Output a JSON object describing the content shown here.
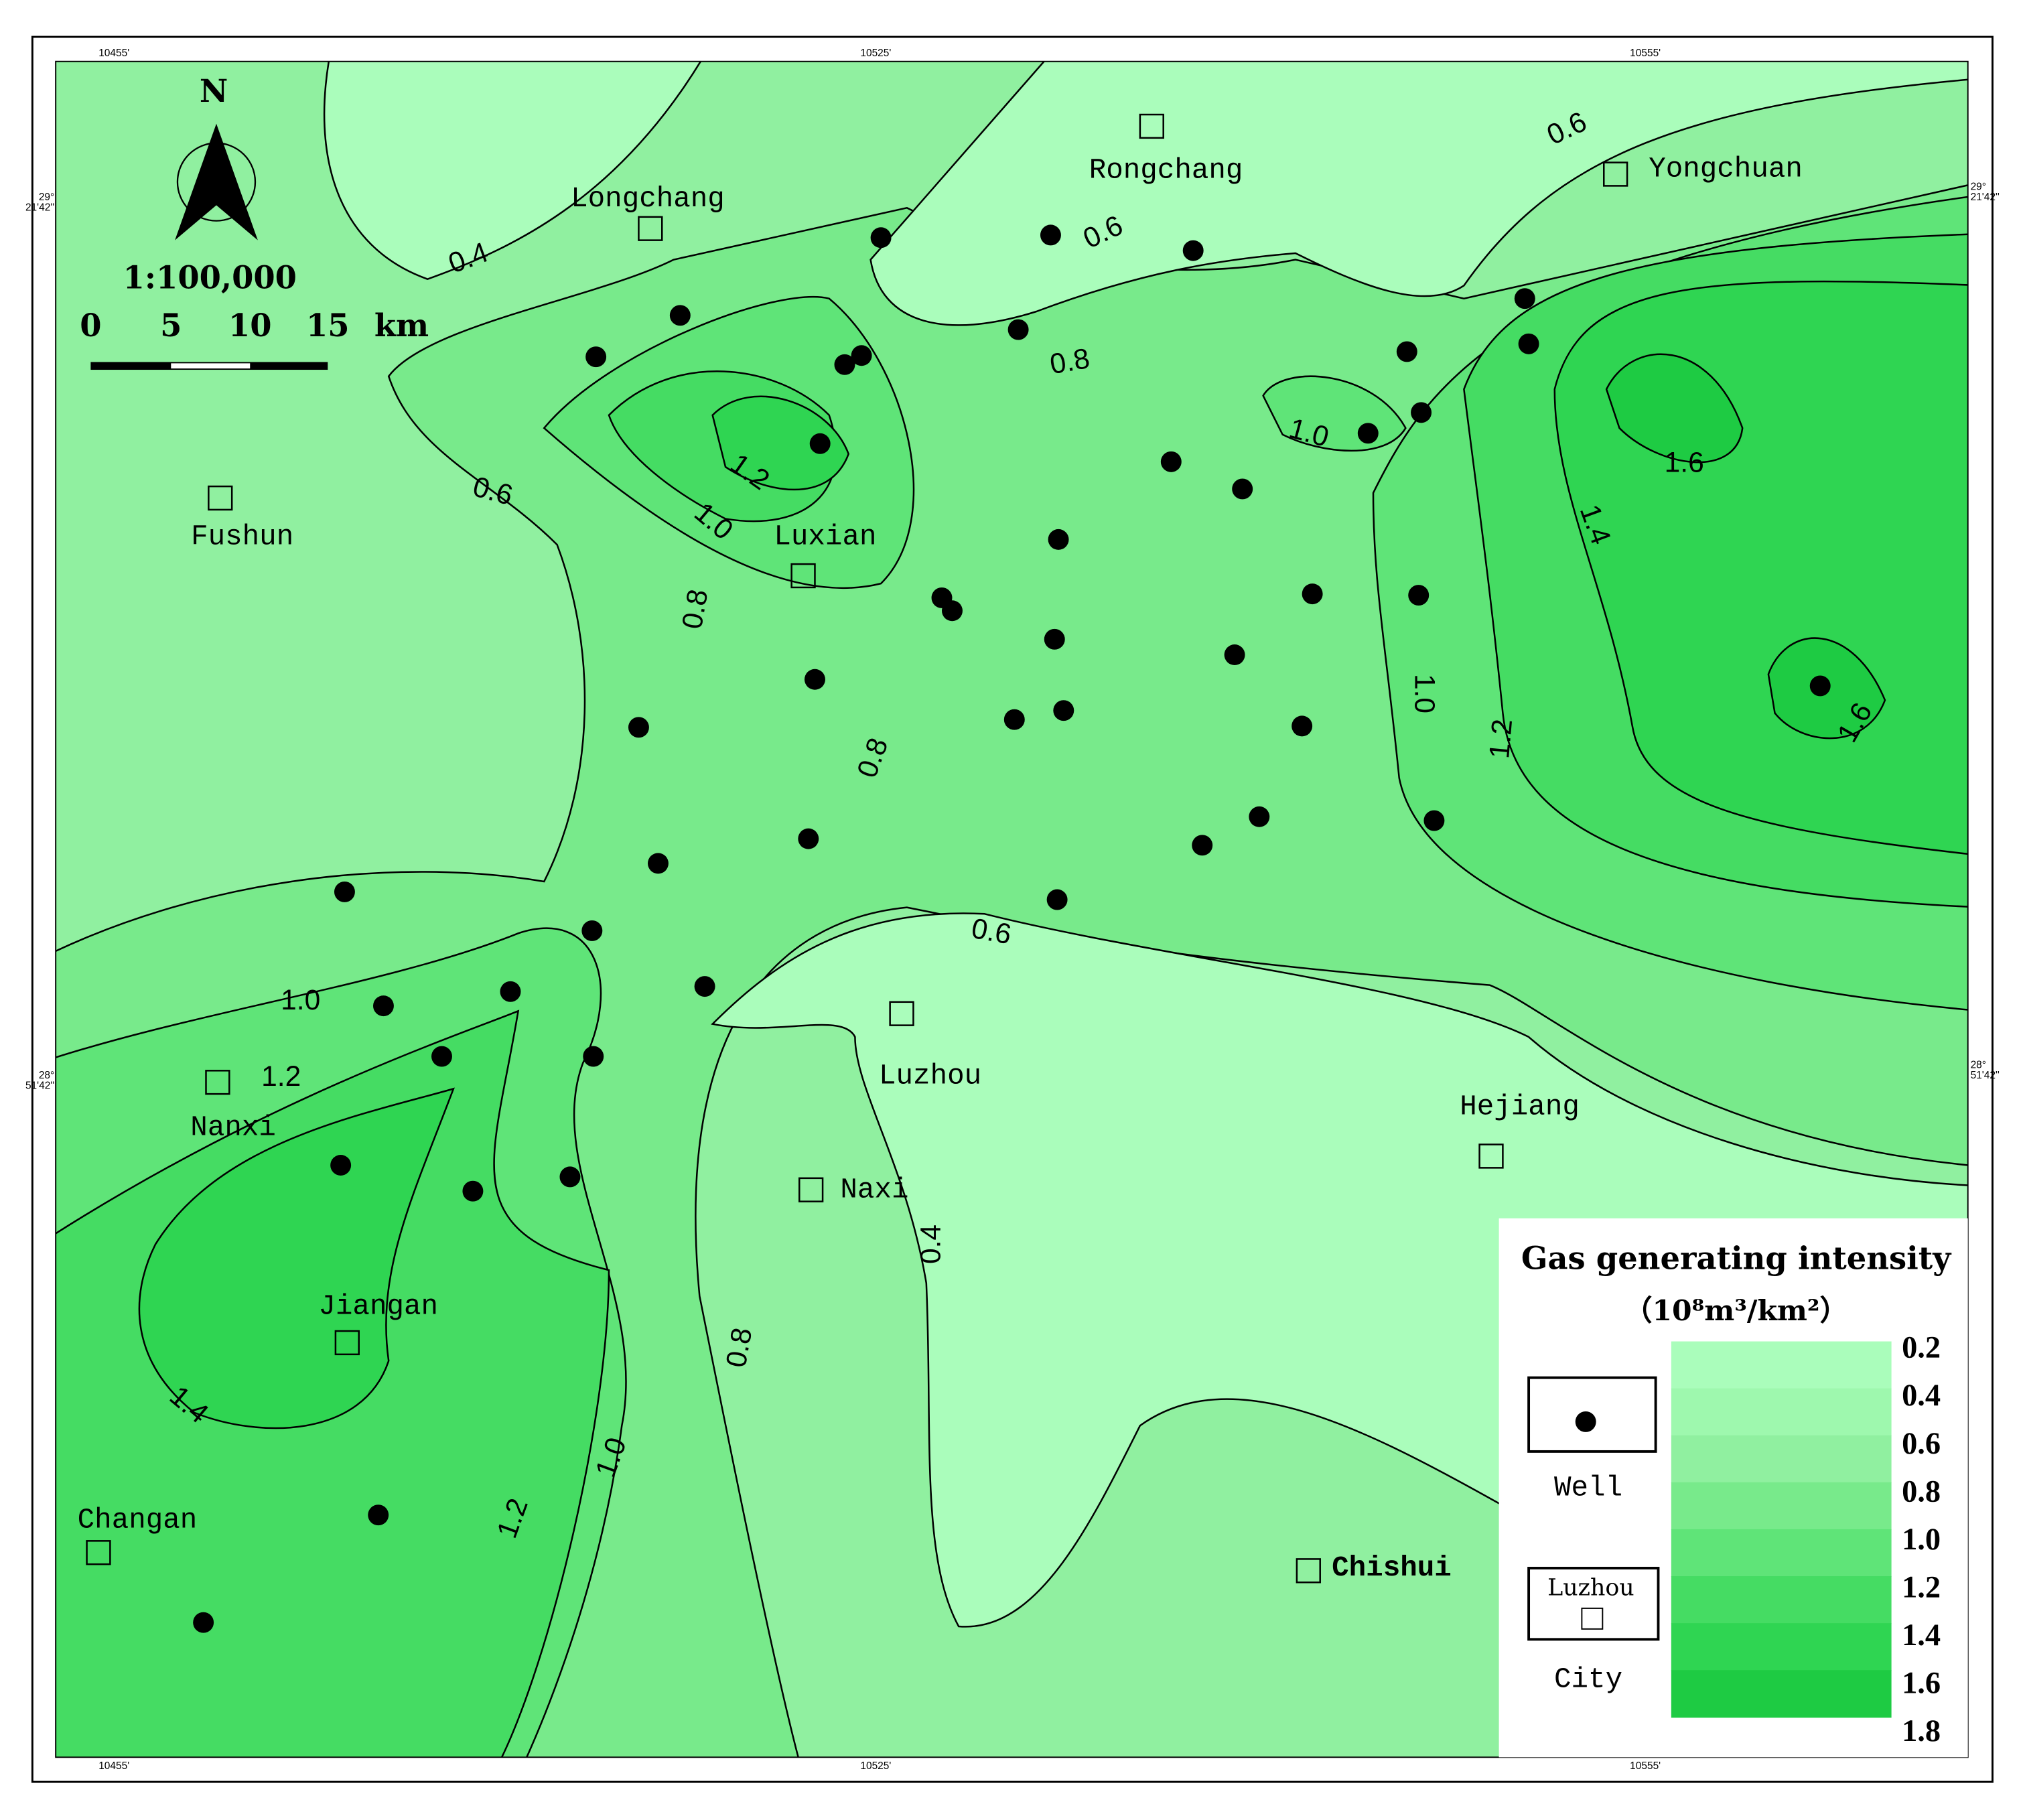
{
  "map": {
    "north": "N",
    "scale": "1:100,000",
    "scale_bar": {
      "ticks": [
        "0",
        "5",
        "10",
        "15"
      ],
      "unit": "km"
    },
    "coords": {
      "top": [
        "10455'",
        "10525'",
        "10555'"
      ],
      "bottom": [
        "10455'",
        "10525'",
        "10555'"
      ],
      "left": [
        [
          "29°",
          "21'42''"
        ],
        [
          "28°",
          "51'42''"
        ]
      ],
      "right": [
        [
          "29°",
          "21'42''"
        ],
        [
          "28°",
          "51'42''"
        ]
      ]
    },
    "cities": [
      "Longchang",
      "Rongchang",
      "Yongchuan",
      "Fushun",
      "Luxian",
      "Luzhou",
      "Hejiang",
      "Nanxi",
      "Naxi",
      "Jiangan",
      "Changan",
      "Chishui"
    ],
    "contour_labels": [
      "0.4",
      "0.6",
      "0.6",
      "0.8",
      "1.0",
      "1.6",
      "0.6",
      "1.2",
      "1.0",
      "1.4",
      "0.8",
      "1.0",
      "1.2",
      "1.6",
      "0.8",
      "0.6",
      "1.0",
      "1.2",
      "0.4",
      "0.8",
      "1.4",
      "1.0",
      "1.2"
    ],
    "legend": {
      "title": "Gas generating intensity",
      "unit": "（10⁸m³/km²）",
      "levels": [
        "0.2",
        "0.4",
        "0.6",
        "0.8",
        "1.0",
        "1.2",
        "1.4",
        "1.6",
        "1.8"
      ],
      "colors": [
        "#aafdbb",
        "#9ef8ae",
        "#90f0a0",
        "#78ea8b",
        "#5fe478",
        "#45dc63",
        "#2fd552",
        "#1ecb43"
      ],
      "well": "Well",
      "city_sample": "Luzhou",
      "city": "City"
    }
  }
}
